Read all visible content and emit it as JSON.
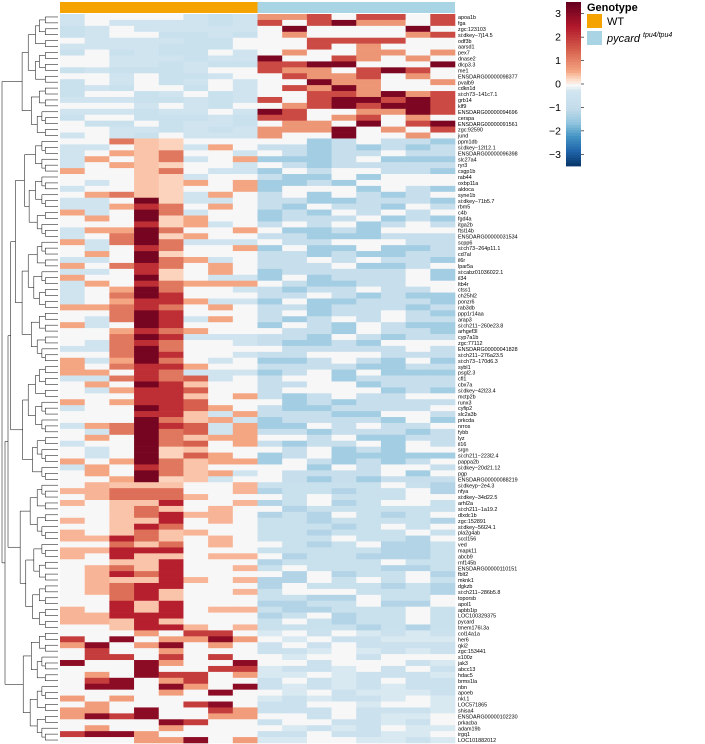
{
  "chart_data": {
    "type": "heatmap",
    "title": "",
    "xlabel": "",
    "ylabel": "",
    "n_columns": 16,
    "column_groups": [
      {
        "name": "WT",
        "count": 8,
        "color": "#f4a300"
      },
      {
        "name": "pycard",
        "superscript": "tpu4/tpu4",
        "count": 8,
        "color": "#a8d4e4"
      }
    ],
    "annotation_title": "Genotype",
    "annotation_legend": [
      {
        "label": "WT",
        "superscript": "",
        "color": "#f4a300"
      },
      {
        "label": "pycard",
        "superscript": "tpu4/tpu4",
        "color": "#a8d4e4"
      }
    ],
    "color_scale": {
      "range": [
        -3.5,
        3.5
      ],
      "ticks": [
        "3",
        "2",
        "1",
        "0",
        "−1",
        "−2",
        "−3"
      ],
      "colors": [
        "#7b0a1e",
        "#c81e30",
        "#e16a5c",
        "#f7c6ae",
        "#f7f7f7",
        "#c5dceb",
        "#6ea8cf",
        "#2a71b3",
        "#0c3a73"
      ]
    },
    "genes": [
      "apoa1b",
      "fga",
      "zgc:123103",
      "si:dkey−7j14.5",
      "odf3b",
      "aarsd1",
      "pex7",
      "dnase2",
      "dlcp3.3",
      "me1",
      "ENSDARG00000098377",
      "pvalb9",
      "cdkn1d",
      "si:ch73−141c7.1",
      "grb14",
      "klf9",
      "ENSDARG00000094696",
      "cerspa",
      "ENSDARG00000091561",
      "zgc:92590",
      "jund",
      "ppm1db",
      "si:dkey−12l12.1",
      "ENSDARG00000096398",
      "slc27a4",
      "ryr3",
      "csgp1b",
      "rab44",
      "oxbp11a",
      "aldoca",
      "syne1b",
      "si:dkey−71b5.7",
      "rbm5",
      "c4b",
      "fgd4a",
      "itga2b",
      "ftsl14b",
      "ENSDARG00000031534",
      "scpp6",
      "si:ch73−264p11.1",
      "cd7al",
      "il6r",
      "lpar5a",
      "si:cabz01036022.1",
      "il34",
      "ltb4r",
      "ctss1",
      "ch25hl2",
      "ponzr6",
      "rab3db",
      "ppp1r14aa",
      "arap3",
      "si:ch211−260e23.8",
      "arhgef3l",
      "cyp7a1b",
      "zgc:77112",
      "ENSDARG00000041828",
      "si:ch211−276a23.5",
      "si:ch73−170d6.3",
      "sybl1",
      "psgl2.3",
      "cfl1",
      "cbx7a",
      "si:dkey−42l23.4",
      "mctp2b",
      "runx3",
      "cyfip2",
      "slc2a3b",
      "prkcda",
      "nrros",
      "fybb",
      "lyz",
      "il16",
      "srgn",
      "si:ch211−223l2.4",
      "pappa2b",
      "si:dkey−20d21.12",
      "pgp",
      "ENSDARG00000088219",
      "si:dkeyp−2e4.3",
      "nfya",
      "si:dkey−34d22.5",
      "arhl2a",
      "si:ch211−1a19.2",
      "dlxdc1b",
      "zgc:152891",
      "si:dkey−56l24.1",
      "pla2g4ab",
      "sccl156",
      "ved",
      "mapk11",
      "abcb9",
      "rnf145b",
      "ENSDARG00000110151",
      "fblt2",
      "mknk1",
      "dgkzb",
      "si:ch211−286b5.8",
      "toporsb",
      "apol1",
      "apbb1ip",
      "LOC100329375",
      "pycard",
      "tmem176l.3a",
      "col14a1a",
      "her6",
      "qki2",
      "zgc:153441",
      "s100z",
      "jak3",
      "abcc13",
      "hdac5",
      "brms1la",
      "nbn",
      "apoeb",
      "nkl.1",
      "LOC571865",
      "shisa4",
      "ENSDARG00000102230",
      "prkacba",
      "adam19b",
      "irgq1",
      "LOC101882012"
    ],
    "values_note": "z-scored expression per gene; rows clustered, columns grouped by genotype"
  }
}
